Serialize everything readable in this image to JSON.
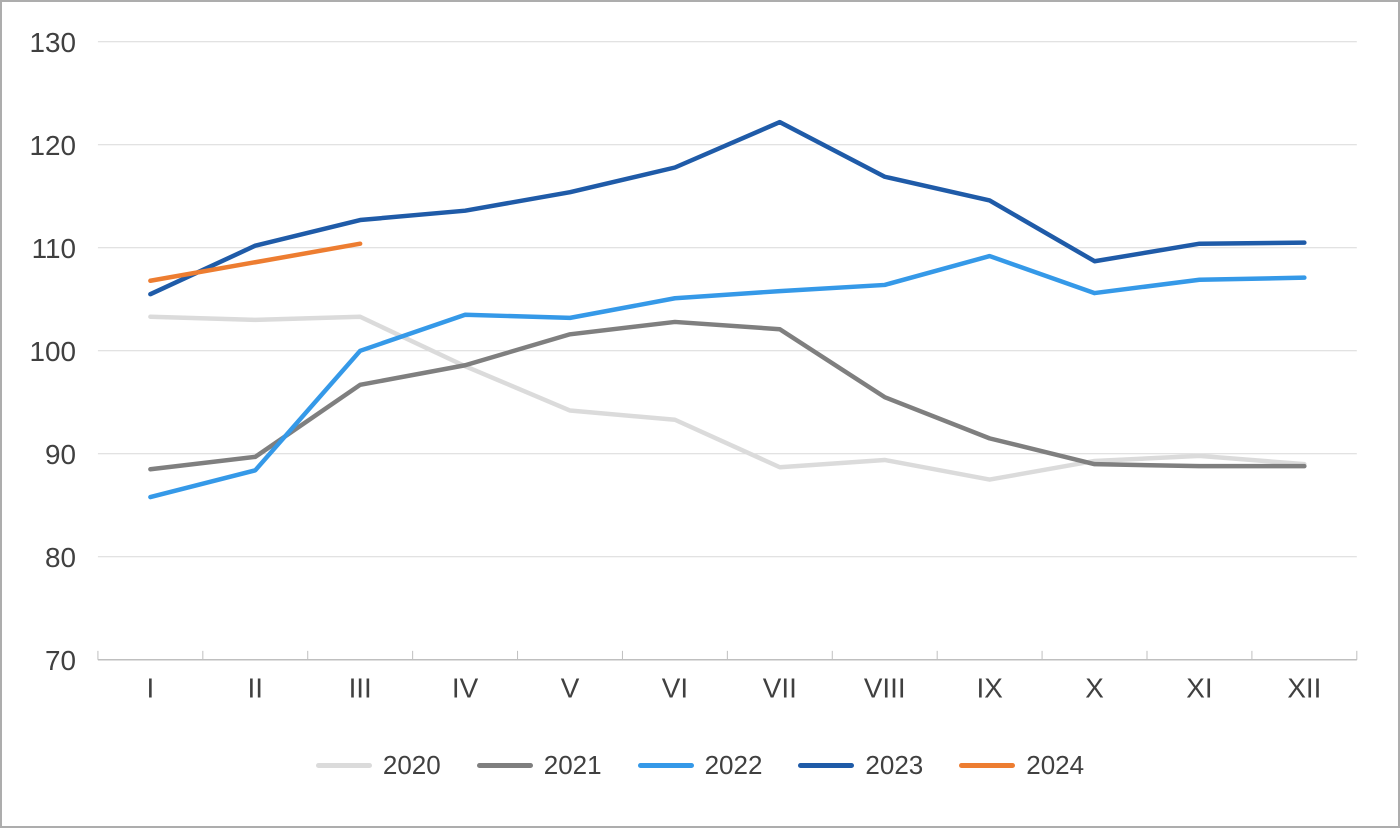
{
  "chart_data": {
    "type": "line",
    "categories": [
      "I",
      "II",
      "III",
      "IV",
      "V",
      "VI",
      "VII",
      "VIII",
      "IX",
      "X",
      "XI",
      "XII"
    ],
    "series": [
      {
        "name": "2020",
        "color": "#DBDBDB",
        "values": [
          103.3,
          103.0,
          103.3,
          98.5,
          94.2,
          93.3,
          88.7,
          89.4,
          87.5,
          89.3,
          89.8,
          89.0
        ]
      },
      {
        "name": "2021",
        "color": "#7F7F7F",
        "values": [
          88.5,
          89.7,
          96.7,
          98.6,
          101.6,
          102.8,
          102.1,
          95.5,
          91.5,
          89.0,
          88.8,
          88.8
        ]
      },
      {
        "name": "2022",
        "color": "#3599E8",
        "values": [
          85.8,
          88.4,
          100.0,
          103.5,
          103.2,
          105.1,
          105.8,
          106.4,
          109.2,
          105.6,
          106.9,
          107.1
        ]
      },
      {
        "name": "2023",
        "color": "#1F5BA8",
        "values": [
          105.5,
          110.2,
          112.7,
          113.6,
          115.4,
          117.8,
          122.2,
          116.9,
          114.6,
          108.7,
          110.4,
          110.5
        ]
      },
      {
        "name": "2024",
        "color": "#ED7D31",
        "values": [
          106.8,
          108.6,
          110.4,
          null,
          null,
          null,
          null,
          null,
          null,
          null,
          null,
          null
        ]
      }
    ],
    "ylim": [
      70,
      130
    ],
    "yticks": [
      70,
      80,
      90,
      100,
      110,
      120,
      130
    ],
    "grid": "horizontal",
    "legend_position": "bottom"
  },
  "style": {
    "gridline_color": "#D9D9D9",
    "axis_color": "#BFBFBF",
    "label_color": "#404040",
    "background": "#FFFFFF"
  }
}
